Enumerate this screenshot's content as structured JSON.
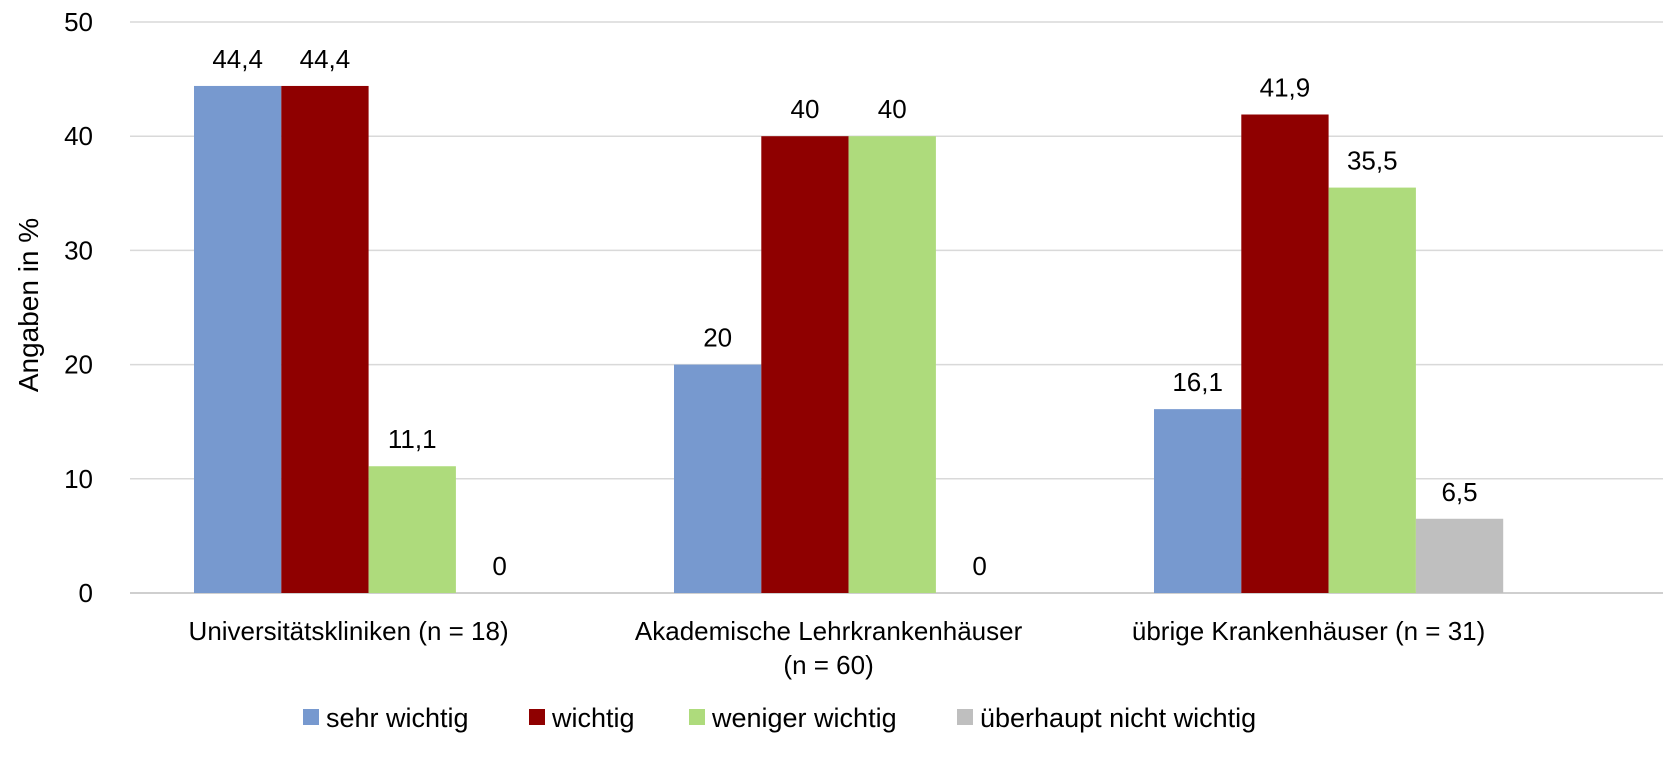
{
  "chart_data": {
    "type": "bar",
    "title": "",
    "xlabel": "",
    "ylabel": "Angaben in %",
    "ylim": [
      0,
      50
    ],
    "yticks": [
      0,
      10,
      20,
      30,
      40,
      50
    ],
    "grid": true,
    "legend_position": "bottom",
    "categories": [
      [
        "Universitätskliniken (n = 18)"
      ],
      [
        "Akademische Lehrkrankenhäuser",
        "(n = 60)"
      ],
      [
        "übrige Krankenhäuser (n = 31)"
      ]
    ],
    "series": [
      {
        "name": "sehr wichtig",
        "color": "#7799CF",
        "values": [
          44.4,
          20,
          16.1
        ],
        "labels": [
          "44,4",
          "20",
          "16,1"
        ]
      },
      {
        "name": "wichtig",
        "color": "#8F0000",
        "values": [
          44.4,
          40,
          41.9
        ],
        "labels": [
          "44,4",
          "40",
          "41,9"
        ]
      },
      {
        "name": "weniger wichtig",
        "color": "#AEDB7C",
        "values": [
          11.1,
          40,
          35.5
        ],
        "labels": [
          "11,1",
          "40",
          "35,5"
        ]
      },
      {
        "name": "überhaupt nicht wichtig",
        "color": "#BFBFBF",
        "values": [
          0,
          0,
          6.5
        ],
        "labels": [
          "0",
          "0",
          "6,5"
        ]
      }
    ]
  }
}
